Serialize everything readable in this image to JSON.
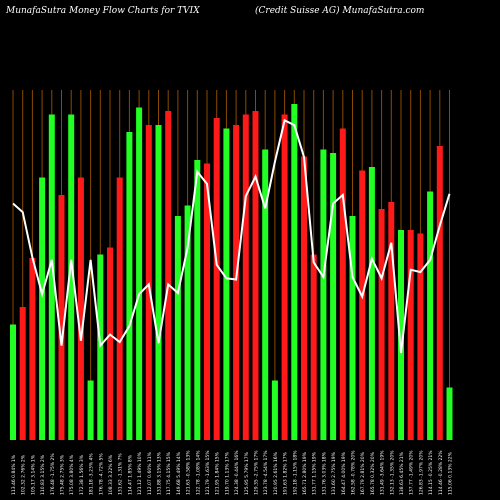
{
  "header": {
    "left": "MunafaSutra  Money Flow  Charts for TVIX",
    "right": "(Credit Suisse AG) MunafaSutra.com"
  },
  "chart_data": {
    "type": "bar",
    "categories": [
      "113.46 0.84% 1%",
      "102.32 2.76% 2%",
      "105.17 3.14% 1%",
      "110.83 3.15% 2%",
      "176.48 -1.75% 2%",
      "175.48 2.75% 3%",
      "175.08 3.80% 4%",
      "172.38 1.56% 3%",
      "181.18 -3.23% 4%",
      "176.78 -4.72% 5%",
      "108.33 3.22% 6%",
      "131.62 -1.31% 7%",
      "114.47 1.85% 8%",
      "121.12 1.49% 10%",
      "112.07 0.60% 11%",
      "131.88 3.15% 13%",
      "117.75 4.15% 15%",
      "149.68 5.49% 14%",
      "121.63 -0.58% 13%",
      "122.78 -1.08% 14%",
      "121.79 -1.63% 15%",
      "121.95 1.84% 15%",
      "119.70 1.13% 17%",
      "124.38 -0.44% 16%",
      "125.95 5.79% 17%",
      "129.35 -2.75% 17%",
      "123.78 -4.54% 17%",
      "120.95 2.61% 16%",
      "191.63 1.82% 17%",
      "192.18 -1.15% 18%",
      "165.71 2.80% 19%",
      "131.77 1.15% 19%",
      "131.76 3.03% 18%",
      "131.60 2.75% 19%",
      "164.47 4.00% 19%",
      "162.58 -0.78% 20%",
      "167.79 2.81% 20%",
      "165.78 0.32% 20%",
      "131.49 -3.64% 19%",
      "132.13 -1.35% 20%",
      "138.63 6.45% 21%",
      "137.77 -1.49% 20%",
      "126.83 -1.97% 20%",
      "114.15 -0.25% 21%",
      "114.46 -0.28% 22%",
      "115.06 0.13% 22%"
    ],
    "values": [
      3.3,
      3.8,
      5.2,
      7.5,
      9.3,
      7.0,
      9.3,
      7.5,
      1.7,
      5.3,
      5.5,
      7.5,
      8.8,
      9.5,
      9.0,
      9.0,
      9.4,
      6.4,
      6.7,
      8.0,
      7.9,
      9.2,
      8.9,
      9.0,
      9.3,
      9.4,
      8.3,
      1.7,
      9.3,
      9.6,
      8.1,
      5.3,
      8.3,
      8.2,
      8.9,
      6.4,
      7.7,
      7.8,
      6.6,
      6.8,
      6.0,
      6.0,
      5.9,
      7.1,
      8.4,
      1.5
    ],
    "colors": [
      "green",
      "red",
      "red",
      "green",
      "green",
      "red",
      "green",
      "red",
      "green",
      "green",
      "red",
      "red",
      "green",
      "green",
      "red",
      "green",
      "red",
      "green",
      "green",
      "green",
      "red",
      "red",
      "green",
      "red",
      "red",
      "red",
      "green",
      "green",
      "red",
      "green",
      "red",
      "red",
      "green",
      "green",
      "red",
      "green",
      "red",
      "green",
      "red",
      "red",
      "green",
      "red",
      "red",
      "green",
      "red",
      "green"
    ],
    "bar_heights": [
      3.3,
      3.8,
      5.2,
      7.5,
      9.3,
      7.0,
      9.3,
      7.5,
      1.7,
      5.3,
      5.5,
      7.5,
      8.8,
      9.5,
      9.0,
      9.0,
      9.4,
      6.4,
      6.7,
      8.0,
      7.9,
      9.2,
      8.9,
      9.0,
      9.3,
      9.4,
      8.3,
      1.7,
      9.3,
      9.6,
      8.1,
      5.3,
      8.3,
      8.2,
      8.9,
      6.4,
      7.7,
      7.8,
      6.6,
      6.8,
      6.0,
      6.0,
      5.9,
      7.1,
      8.4,
      1.5
    ],
    "price_line": [
      121.0,
      117.5,
      99.0,
      84.0,
      98.0,
      63.0,
      98.0,
      65.0,
      98.0,
      63.0,
      67.5,
      64.5,
      71.0,
      84.0,
      88.0,
      64.0,
      88.0,
      84.5,
      103.0,
      134.0,
      129.0,
      96.0,
      90.5,
      90.0,
      124.0,
      132.0,
      119.0,
      138.0,
      155.0,
      153.0,
      140.0,
      97.0,
      91.0,
      121.0,
      124.5,
      91.0,
      83.0,
      98.5,
      90.5,
      105.0,
      60.0,
      94.0,
      93.0,
      98.0,
      112.0,
      125.0
    ],
    "ylim": [
      0,
      10
    ]
  }
}
